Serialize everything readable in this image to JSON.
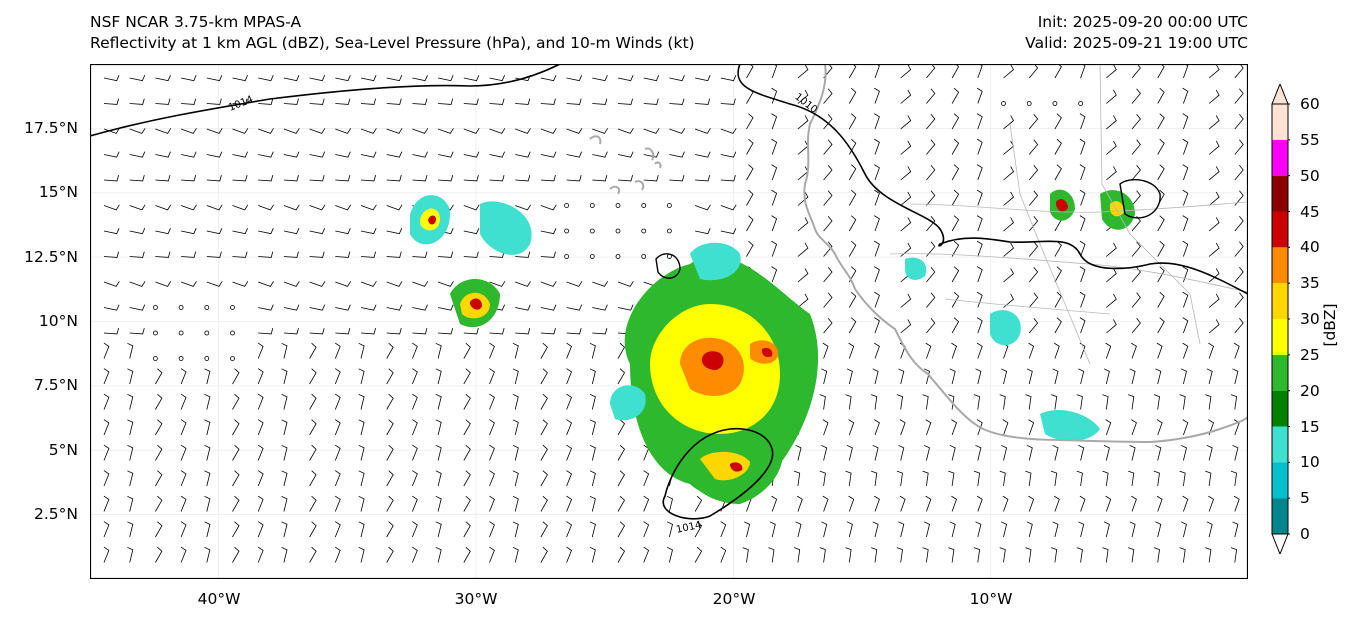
{
  "header": {
    "model": "NSF NCAR 3.75-km MPAS-A",
    "fields": "Reflectivity at 1 km AGL (dBZ), Sea-Level Pressure (hPa), and 10-m Winds (kt)",
    "init": "Init: 2025-09-20 00:00 UTC",
    "valid": "Valid: 2025-09-21 19:00 UTC"
  },
  "map": {
    "lon_range": [
      -45,
      0
    ],
    "lat_range": [
      0,
      20
    ],
    "y_ticks": [
      {
        "lat": 17.5,
        "label": "17.5°N"
      },
      {
        "lat": 15,
        "label": "15°N"
      },
      {
        "lat": 12.5,
        "label": "12.5°N"
      },
      {
        "lat": 10,
        "label": "10°N"
      },
      {
        "lat": 7.5,
        "label": "7.5°N"
      },
      {
        "lat": 5,
        "label": "5°N"
      },
      {
        "lat": 2.5,
        "label": "2.5°N"
      }
    ],
    "x_ticks": [
      {
        "lon": -40,
        "label": "40°W"
      },
      {
        "lon": -30,
        "label": "30°W"
      },
      {
        "lon": -20,
        "label": "20°W"
      },
      {
        "lon": -10,
        "label": "10°W"
      }
    ],
    "isobar_labels": [
      "1014",
      "1010",
      "1014"
    ]
  },
  "colorbar": {
    "title": "[dBZ]",
    "levels": [
      "0",
      "5",
      "10",
      "15",
      "20",
      "25",
      "30",
      "35",
      "40",
      "45",
      "50",
      "55",
      "60"
    ],
    "colors": [
      "#ffffff",
      "#00868b",
      "#00bfcc",
      "#40e0d0",
      "#008000",
      "#2db82d",
      "#ffff00",
      "#ffd700",
      "#ff8c00",
      "#cc0000",
      "#8b0000",
      "#ff00ff",
      "#ffe4d6"
    ]
  }
}
